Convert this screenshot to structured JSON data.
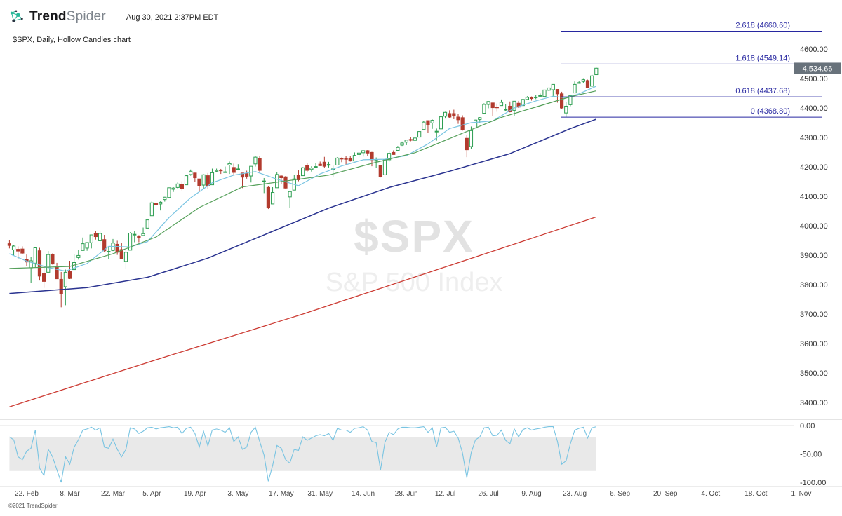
{
  "header": {
    "brand_bold": "Trend",
    "brand_light": "Spider",
    "timestamp": "Aug 30, 2021 2:37PM EDT",
    "chart_label": "$SPX, Daily, Hollow Candles chart"
  },
  "watermark": {
    "symbol": "$SPX",
    "name": "S&P 500 Index"
  },
  "footer": {
    "copyright": "©2021 TrendSpider"
  },
  "colors": {
    "up": "#2d9e51",
    "down": "#b23b2e",
    "ma_fast": "#79c4e2",
    "ma_mid": "#55a05a",
    "ma_slow": "#2a3390",
    "ma_200": "#cc3b33",
    "fib": "#2727a0",
    "badge_bg": "#68727b",
    "badge_text": "#ffffff",
    "osc_line": "#79c4e2",
    "osc_band": "#e9e9e9",
    "axis_text": "#333333",
    "brand_teal": "#27b99a"
  },
  "chart_data": {
    "type": "candlestick",
    "title": "$SPX, Daily, Hollow Candles chart",
    "symbol": "$SPX",
    "last_price": "4,534.66",
    "last_price_value": 4534.66,
    "y_axis": {
      "min": 3400,
      "max": 4600,
      "step": 100,
      "tick_labels": [
        "4600.00",
        "4500.00",
        "4400.00",
        "4300.00",
        "4200.00",
        "4100.00",
        "4000.00",
        "3900.00",
        "3800.00",
        "3700.00",
        "3600.00",
        "3500.00",
        "3400.00"
      ]
    },
    "x_axis": {
      "tick_labels": [
        "22. Feb",
        "8. Mar",
        "22. Mar",
        "5. Apr",
        "19. Apr",
        "3. May",
        "17. May",
        "31. May",
        "14. Jun",
        "28. Jun",
        "12. Jul",
        "26. Jul",
        "9. Aug",
        "23. Aug",
        "6. Sep",
        "20. Sep",
        "4. Oct",
        "18. Oct",
        "1. Nov"
      ],
      "tick_indices": [
        4,
        14,
        24,
        33,
        43,
        53,
        63,
        72,
        82,
        92,
        101,
        111,
        121,
        131,
        141.5,
        152,
        162.5,
        173,
        183.5
      ]
    },
    "fib_levels": [
      {
        "label": "2.618 (4660.60)",
        "value": 4660.6
      },
      {
        "label": "1.618 (4549.14)",
        "value": 4549.14
      },
      {
        "label": "0.618 (4437.68)",
        "value": 4437.68
      },
      {
        "label": "0 (4368.80)",
        "value": 4368.8
      }
    ],
    "candles_ohlc": [
      [
        3939,
        3950,
        3923,
        3933
      ],
      [
        3918,
        3934,
        3900,
        3931
      ],
      [
        3920,
        3930,
        3886,
        3914
      ],
      [
        3921,
        3930,
        3903,
        3907
      ],
      [
        3885,
        3902,
        3863,
        3877
      ],
      [
        3857,
        3895,
        3805,
        3881
      ],
      [
        3873,
        3928,
        3859,
        3925
      ],
      [
        3915,
        3925,
        3814,
        3829
      ],
      [
        3839,
        3861,
        3789,
        3811
      ],
      [
        3842,
        3914,
        3842,
        3902
      ],
      [
        3903,
        3906,
        3868,
        3870
      ],
      [
        3863,
        3874,
        3819,
        3820
      ],
      [
        3818,
        3843,
        3723,
        3768
      ],
      [
        3793,
        3851,
        3730,
        3842
      ],
      [
        3844,
        3881,
        3819,
        3821
      ],
      [
        3851,
        3903,
        3851,
        3875
      ],
      [
        3892,
        3917,
        3885,
        3899
      ],
      [
        3916,
        3960,
        3916,
        3939
      ],
      [
        3924,
        3944,
        3915,
        3943
      ],
      [
        3942,
        3970,
        3923,
        3969
      ],
      [
        3973,
        3981,
        3953,
        3963
      ],
      [
        3949,
        3983,
        3935,
        3974
      ],
      [
        3953,
        3969,
        3910,
        3915
      ],
      [
        3913,
        3930,
        3886,
        3913
      ],
      [
        3916,
        3955,
        3914,
        3941
      ],
      [
        3937,
        3949,
        3901,
        3910
      ],
      [
        3919,
        3942,
        3889,
        3889
      ],
      [
        3879,
        3919,
        3854,
        3910
      ],
      [
        3917,
        3978,
        3917,
        3975
      ],
      [
        3969,
        3981,
        3944,
        3971
      ],
      [
        3964,
        3968,
        3944,
        3959
      ],
      [
        3967,
        3994,
        3967,
        3973
      ],
      [
        3992,
        4020,
        3992,
        4020
      ],
      [
        4034,
        4083,
        4034,
        4078
      ],
      [
        4075,
        4086,
        4068,
        4074
      ],
      [
        4074,
        4083,
        4052,
        4080
      ],
      [
        4089,
        4098,
        4082,
        4097
      ],
      [
        4096,
        4129,
        4095,
        4129
      ],
      [
        4124,
        4131,
        4115,
        4128
      ],
      [
        4130,
        4148,
        4124,
        4142
      ],
      [
        4141,
        4151,
        4120,
        4125
      ],
      [
        4139,
        4173,
        4139,
        4170
      ],
      [
        4174,
        4191,
        4170,
        4185
      ],
      [
        4179,
        4180,
        4150,
        4163
      ],
      [
        4159,
        4159,
        4118,
        4135
      ],
      [
        4138,
        4175,
        4126,
        4173
      ],
      [
        4170,
        4179,
        4124,
        4135
      ],
      [
        4139,
        4194,
        4139,
        4180
      ],
      [
        4185,
        4194,
        4182,
        4188
      ],
      [
        4189,
        4193,
        4176,
        4187
      ],
      [
        4183,
        4201,
        4181,
        4183
      ],
      [
        4206,
        4218,
        4176,
        4211
      ],
      [
        4198,
        4211,
        4174,
        4181
      ],
      [
        4191,
        4209,
        4188,
        4193
      ],
      [
        4179,
        4179,
        4128,
        4165
      ],
      [
        4177,
        4187,
        4160,
        4168
      ],
      [
        4169,
        4202,
        4147,
        4202
      ],
      [
        4210,
        4238,
        4201,
        4233
      ],
      [
        4228,
        4236,
        4181,
        4188
      ],
      [
        4150,
        4162,
        4111,
        4152
      ],
      [
        4130,
        4134,
        4057,
        4063
      ],
      [
        4074,
        4131,
        4074,
        4113
      ],
      [
        4129,
        4183,
        4129,
        4174
      ],
      [
        4169,
        4171,
        4142,
        4163
      ],
      [
        4166,
        4169,
        4125,
        4128
      ],
      [
        4098,
        4116,
        4061,
        4116
      ],
      [
        4121,
        4172,
        4121,
        4159
      ],
      [
        4172,
        4188,
        4151,
        4156
      ],
      [
        4170,
        4199,
        4170,
        4197
      ],
      [
        4205,
        4213,
        4182,
        4188
      ],
      [
        4191,
        4202,
        4184,
        4196
      ],
      [
        4201,
        4213,
        4197,
        4201
      ],
      [
        4209,
        4218,
        4203,
        4204
      ],
      [
        4216,
        4234,
        4197,
        4202
      ],
      [
        4206,
        4217,
        4198,
        4208
      ],
      [
        4191,
        4204,
        4167,
        4193
      ],
      [
        4206,
        4233,
        4206,
        4230
      ],
      [
        4229,
        4232,
        4216,
        4227
      ],
      [
        4228,
        4237,
        4208,
        4227
      ],
      [
        4229,
        4237,
        4218,
        4220
      ],
      [
        4220,
        4249,
        4220,
        4239
      ],
      [
        4242,
        4248,
        4232,
        4247
      ],
      [
        4248,
        4255,
        4235,
        4255
      ],
      [
        4255,
        4257,
        4238,
        4247
      ],
      [
        4249,
        4251,
        4202,
        4224
      ],
      [
        4221,
        4232,
        4196,
        4222
      ],
      [
        4204,
        4204,
        4164,
        4166
      ],
      [
        4173,
        4226,
        4173,
        4225
      ],
      [
        4224,
        4255,
        4217,
        4246
      ],
      [
        4249,
        4256,
        4241,
        4242
      ],
      [
        4256,
        4271,
        4256,
        4266
      ],
      [
        4274,
        4286,
        4271,
        4281
      ],
      [
        4284,
        4292,
        4274,
        4291
      ],
      [
        4293,
        4300,
        4287,
        4292
      ],
      [
        4290,
        4302,
        4290,
        4298
      ],
      [
        4301,
        4320,
        4300,
        4320
      ],
      [
        4327,
        4355,
        4326,
        4352
      ],
      [
        4357,
        4357,
        4315,
        4344
      ],
      [
        4349,
        4361,
        4329,
        4358
      ],
      [
        4321,
        4330,
        4289,
        4321
      ],
      [
        4329,
        4371,
        4329,
        4370
      ],
      [
        4372,
        4387,
        4364,
        4385
      ],
      [
        4381,
        4392,
        4366,
        4369
      ],
      [
        4381,
        4394,
        4362,
        4374
      ],
      [
        4369,
        4380,
        4346,
        4360
      ],
      [
        4367,
        4375,
        4323,
        4327
      ],
      [
        4297,
        4309,
        4233,
        4258
      ],
      [
        4269,
        4337,
        4262,
        4323
      ],
      [
        4332,
        4360,
        4332,
        4359
      ],
      [
        4361,
        4369,
        4350,
        4367
      ],
      [
        4382,
        4416,
        4382,
        4412
      ],
      [
        4412,
        4423,
        4399,
        4422
      ],
      [
        4417,
        4418,
        4373,
        4401
      ],
      [
        4403,
        4415,
        4387,
        4401
      ],
      [
        4408,
        4429,
        4408,
        4419
      ],
      [
        4395,
        4412,
        4389,
        4395
      ],
      [
        4406,
        4422,
        4385,
        4387
      ],
      [
        4392,
        4423,
        4374,
        4423
      ],
      [
        4416,
        4424,
        4400,
        4403
      ],
      [
        4408,
        4430,
        4408,
        4429
      ],
      [
        4429,
        4440,
        4429,
        4436
      ],
      [
        4437,
        4439,
        4425,
        4432
      ],
      [
        4436,
        4445,
        4430,
        4437
      ],
      [
        4442,
        4449,
        4436,
        4442
      ],
      [
        4439,
        4461,
        4436,
        4461
      ],
      [
        4460,
        4468,
        4458,
        4468
      ],
      [
        4462,
        4480,
        4438,
        4480
      ],
      [
        4463,
        4463,
        4418,
        4448
      ],
      [
        4448,
        4455,
        4397,
        4400
      ],
      [
        4383,
        4419,
        4369,
        4406
      ],
      [
        4411,
        4444,
        4406,
        4442
      ],
      [
        4451,
        4490,
        4450,
        4480
      ],
      [
        4485,
        4492,
        4482,
        4486
      ],
      [
        4490,
        4501,
        4485,
        4496
      ],
      [
        4493,
        4496,
        4468,
        4470
      ],
      [
        4474,
        4513,
        4474,
        4509
      ],
      [
        4513,
        4537,
        4513,
        4535
      ]
    ],
    "moving_averages": [
      {
        "name": "fast-sma",
        "color_key": "ma_fast",
        "width": 1.2,
        "anchors": [
          [
            0,
            3905
          ],
          [
            4,
            3880
          ],
          [
            9,
            3858
          ],
          [
            13,
            3846
          ],
          [
            18,
            3872
          ],
          [
            23,
            3930
          ],
          [
            28,
            3928
          ],
          [
            32,
            3946
          ],
          [
            37,
            4028
          ],
          [
            42,
            4095
          ],
          [
            47,
            4146
          ],
          [
            52,
            4172
          ],
          [
            57,
            4184
          ],
          [
            62,
            4158
          ],
          [
            67,
            4136
          ],
          [
            72,
            4176
          ],
          [
            77,
            4203
          ],
          [
            82,
            4224
          ],
          [
            87,
            4226
          ],
          [
            92,
            4238
          ],
          [
            97,
            4278
          ],
          [
            102,
            4330
          ],
          [
            107,
            4350
          ],
          [
            112,
            4356
          ],
          [
            117,
            4400
          ],
          [
            122,
            4424
          ],
          [
            126,
            4440
          ],
          [
            129,
            4434
          ],
          [
            132,
            4448
          ],
          [
            136,
            4474
          ]
        ]
      },
      {
        "name": "mid-sma",
        "color_key": "ma_mid",
        "width": 1.2,
        "anchors": [
          [
            0,
            3855
          ],
          [
            14,
            3862
          ],
          [
            24,
            3905
          ],
          [
            34,
            3962
          ],
          [
            44,
            4062
          ],
          [
            54,
            4132
          ],
          [
            64,
            4152
          ],
          [
            74,
            4172
          ],
          [
            84,
            4212
          ],
          [
            94,
            4248
          ],
          [
            104,
            4308
          ],
          [
            114,
            4368
          ],
          [
            124,
            4412
          ],
          [
            130,
            4438
          ],
          [
            136,
            4458
          ]
        ]
      },
      {
        "name": "slow-sma",
        "color_key": "ma_slow",
        "width": 1.5,
        "anchors": [
          [
            0,
            3770
          ],
          [
            18,
            3790
          ],
          [
            32,
            3825
          ],
          [
            46,
            3890
          ],
          [
            60,
            3975
          ],
          [
            74,
            4060
          ],
          [
            88,
            4130
          ],
          [
            102,
            4185
          ],
          [
            116,
            4245
          ],
          [
            130,
            4330
          ],
          [
            136,
            4362
          ]
        ]
      },
      {
        "name": "sma-200",
        "color_key": "ma_200",
        "width": 1.3,
        "anchors": [
          [
            0,
            3385
          ],
          [
            34,
            3545
          ],
          [
            68,
            3700
          ],
          [
            102,
            3865
          ],
          [
            136,
            4030
          ]
        ]
      }
    ],
    "oscillator": {
      "levels": [
        0,
        -50,
        -100
      ],
      "tick_labels": [
        "0.00",
        "-50.00",
        "-100.00"
      ],
      "band": [
        -20,
        -80
      ],
      "values": [
        -20,
        -25,
        -55,
        -60,
        -45,
        -40,
        -8,
        -75,
        -88,
        -42,
        -55,
        -78,
        -100,
        -55,
        -68,
        -38,
        -25,
        -8,
        -6,
        -3,
        -8,
        -4,
        -38,
        -40,
        -24,
        -42,
        -55,
        -42,
        -4,
        -6,
        -14,
        -10,
        -4,
        -3,
        -6,
        -4,
        -3,
        -2,
        -4,
        -3,
        -14,
        -5,
        -3,
        -14,
        -38,
        -10,
        -36,
        -8,
        -6,
        -8,
        -12,
        -4,
        -28,
        -20,
        -42,
        -38,
        -12,
        -3,
        -28,
        -52,
        -98,
        -70,
        -35,
        -40,
        -60,
        -66,
        -42,
        -44,
        -20,
        -26,
        -22,
        -18,
        -16,
        -18,
        -14,
        -26,
        -5,
        -8,
        -8,
        -12,
        -5,
        -4,
        -2,
        -8,
        -28,
        -30,
        -78,
        -30,
        -12,
        -16,
        -6,
        -3,
        -3,
        -4,
        -4,
        -3,
        -2,
        -12,
        -4,
        -38,
        -4,
        -3,
        -12,
        -10,
        -22,
        -48,
        -92,
        -48,
        -25,
        -20,
        -4,
        -3,
        -18,
        -17,
        -8,
        -26,
        -32,
        -6,
        -20,
        -7,
        -4,
        -8,
        -6,
        -5,
        -3,
        -2,
        -2,
        -28,
        -68,
        -62,
        -32,
        -8,
        -5,
        -3,
        -22,
        -4,
        -2
      ]
    }
  }
}
